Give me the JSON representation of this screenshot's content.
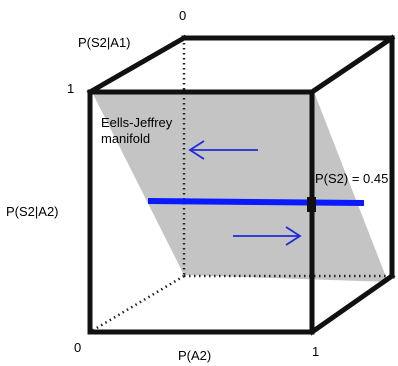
{
  "diagram": {
    "labels": {
      "top_zero": "0",
      "axis_s2_a1": "P(S2|A1)",
      "left_one": "1",
      "manifold_line1": "Eells-Jeffrey",
      "manifold_line2": "manifold",
      "axis_s2_a2": "P(S2|A2)",
      "p_s2_value": "P(S2) = 0.45",
      "bottom_zero": "0",
      "axis_a2": "P(A2)",
      "bottom_one": "1"
    },
    "colors": {
      "plane": "#c4c4c4",
      "edges": "#111111",
      "line": "#0a1aff",
      "arrow": "#1f2ad9"
    }
  }
}
